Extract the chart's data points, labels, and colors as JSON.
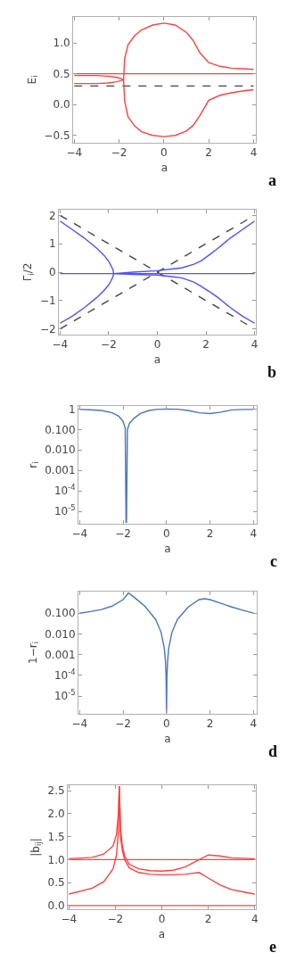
{
  "chart_data": [
    {
      "type": "line",
      "xlabel": "a",
      "ylabel": "E$_{i}$",
      "annotations": [
        "a"
      ],
      "xlim": [
        -4.05,
        4.1
      ],
      "xticks": [
        -4,
        -2,
        0,
        2,
        4
      ],
      "ylim": [
        -0.62,
        1.42
      ],
      "yticks": [
        {
          "value": -0.5,
          "label": "−0.5"
        },
        {
          "value": 0,
          "label": "0.0"
        },
        {
          "value": 0.5,
          "label": "0.5"
        },
        {
          "value": 1,
          "label": "1.0"
        }
      ],
      "series": [
        {
          "color": "#ff4040",
          "x": [
            -4,
            4
          ],
          "values": [
            0.5,
            0.5
          ]
        },
        {
          "color": "#444444",
          "line_style": "dashed",
          "x": [
            -4,
            4
          ],
          "values": [
            0.3,
            0.3
          ]
        },
        {
          "color": "#ff4040",
          "x": [
            -4,
            -3,
            -2.5,
            -2.1,
            -1.9,
            -1.8
          ],
          "values": [
            0.47,
            0.47,
            0.46,
            0.44,
            0.42,
            0.4
          ]
        },
        {
          "color": "#ff4040",
          "x": [
            -4,
            -3,
            -2.5,
            -2.1,
            -1.9,
            -1.8
          ],
          "values": [
            0.34,
            0.34,
            0.35,
            0.37,
            0.39,
            0.4
          ]
        },
        {
          "color": "#ff4040",
          "x": [
            4,
            3.5,
            3,
            2.5,
            2,
            1.6,
            1.3,
            1,
            0.5,
            0,
            -0.5,
            -1,
            -1.3,
            -1.6,
            -1.75,
            -1.8,
            -1.75,
            -1.6,
            -1.3,
            -1,
            -0.5,
            0,
            0.5,
            1,
            1.3,
            1.6,
            2,
            2.5,
            3,
            3.5,
            4
          ],
          "values": [
            0.57,
            0.58,
            0.59,
            0.62,
            0.68,
            0.84,
            1.04,
            1.17,
            1.29,
            1.32,
            1.29,
            1.21,
            1.12,
            0.97,
            0.75,
            0.4,
            0.05,
            -0.2,
            -0.35,
            -0.44,
            -0.5,
            -0.52,
            -0.5,
            -0.43,
            -0.34,
            -0.18,
            0.07,
            0.15,
            0.19,
            0.22,
            0.24
          ]
        }
      ]
    },
    {
      "type": "line",
      "xlabel": "a",
      "ylabel": "Γ$_{i}$/2",
      "annotations": [
        "b"
      ],
      "xlim": [
        -4.05,
        4.05
      ],
      "xticks": [
        -4,
        -2,
        0,
        2,
        4
      ],
      "ylim": [
        -2.2,
        2.2
      ],
      "yticks": [
        -2,
        -1,
        0,
        1,
        2
      ],
      "series": [
        {
          "color": "#444444",
          "line_style": "dashed",
          "x": [
            -4,
            4
          ],
          "values": [
            2,
            -2
          ]
        },
        {
          "color": "#444444",
          "line_style": "dashed",
          "x": [
            -4,
            4
          ],
          "values": [
            -2,
            2
          ]
        },
        {
          "color": "#5050ff",
          "x": [
            -4,
            4
          ],
          "values": [
            -0.05,
            -0.05
          ]
        },
        {
          "color": "#5050ff",
          "x": [
            -4,
            -3.5,
            -3,
            -2.5,
            -2.2,
            -2,
            -1.9,
            -1.82,
            -1.8,
            -1.82,
            -1.9,
            -2,
            -2.2,
            -2.5,
            -3,
            -3.5,
            -4
          ],
          "values": [
            1.8,
            1.5,
            1.2,
            0.85,
            0.6,
            0.38,
            0.22,
            0.08,
            -0.05,
            -0.15,
            -0.3,
            -0.45,
            -0.65,
            -0.9,
            -1.25,
            -1.55,
            -1.8
          ]
        },
        {
          "color": "#5050ff",
          "x": [
            -1.8,
            -1,
            0,
            0.5,
            1,
            1.5,
            1.8,
            2.2,
            2.5,
            3,
            3.5,
            4
          ],
          "values": [
            -0.05,
            0.0,
            0.05,
            0.1,
            0.15,
            0.28,
            0.4,
            0.65,
            0.85,
            1.2,
            1.5,
            1.8
          ]
        },
        {
          "color": "#5050ff",
          "x": [
            -1.8,
            -1,
            0,
            0.5,
            1,
            1.5,
            1.8,
            2.2,
            2.5,
            3,
            3.5,
            4
          ],
          "values": [
            -0.05,
            -0.08,
            -0.1,
            -0.15,
            -0.2,
            -0.35,
            -0.5,
            -0.72,
            -0.9,
            -1.25,
            -1.55,
            -1.8
          ]
        }
      ]
    },
    {
      "type": "line",
      "log": true,
      "xlabel": "a",
      "ylabel": "r$_{i}$",
      "annotations": [
        "c"
      ],
      "xlim": [
        -4.05,
        4.15
      ],
      "xticks": [
        -4,
        -2,
        0,
        2,
        4
      ],
      "ylim": [
        2.5e-06,
        1.4
      ],
      "yticks": [
        {
          "value": 1,
          "label": "1"
        },
        {
          "value": 0.1,
          "label": "0.100"
        },
        {
          "value": 0.01,
          "label": "0.010"
        },
        {
          "value": 0.001,
          "label": "0.001"
        },
        {
          "value": 0.0001,
          "label": "10$^{-4}$"
        },
        {
          "value": 1e-05,
          "label": "10$^{-5}$"
        }
      ],
      "series": [
        {
          "color": "#4a74bd",
          "x": [
            -4,
            -3.5,
            -3,
            -2.5,
            -2.2,
            -2,
            -1.9,
            -1.86,
            -1.84,
            -1.8,
            -1.7,
            -1.5,
            -1.2,
            -0.8,
            -0.5,
            0,
            0.5,
            1,
            1.5,
            2,
            2.5,
            3,
            3.5,
            4
          ],
          "values": [
            0.95,
            0.92,
            0.85,
            0.65,
            0.45,
            0.25,
            0.12,
            3e-06,
            3e-06,
            0.1,
            0.2,
            0.35,
            0.6,
            0.85,
            0.95,
            1,
            0.97,
            0.85,
            0.65,
            0.6,
            0.7,
            0.9,
            0.95,
            0.95
          ]
        }
      ]
    },
    {
      "type": "line",
      "log": true,
      "xlabel": "a",
      "ylabel": "1−r$_{i}$",
      "annotations": [
        "d"
      ],
      "xlim": [
        -4.05,
        4.15
      ],
      "xticks": [
        -4,
        -2,
        0,
        2,
        4
      ],
      "ylim": [
        1.4e-06,
        1.1
      ],
      "yticks": [
        {
          "value": 0.1,
          "label": "0.100"
        },
        {
          "value": 0.01,
          "label": "0.010"
        },
        {
          "value": 0.001,
          "label": "0.001"
        },
        {
          "value": 0.0001,
          "label": "10$^{-4}$"
        },
        {
          "value": 1e-05,
          "label": "10$^{-5}$"
        }
      ],
      "series": [
        {
          "color": "#4a74bd",
          "x": [
            -4,
            -3.5,
            -3,
            -2.5,
            -2,
            -1.75,
            -1.5,
            -1,
            -0.5,
            -0.25,
            -0.1,
            -0.05,
            -0.02,
            0,
            0.02,
            0.05,
            0.1,
            0.25,
            0.5,
            1,
            1.5,
            1.75,
            2,
            2.5,
            3,
            3.5,
            4
          ],
          "values": [
            0.1,
            0.12,
            0.15,
            0.22,
            0.45,
            0.95,
            0.6,
            0.22,
            0.05,
            0.012,
            0.002,
            0.0005,
            0.0001,
            1.5e-06,
            0.0001,
            0.0005,
            0.002,
            0.012,
            0.05,
            0.2,
            0.45,
            0.5,
            0.45,
            0.3,
            0.2,
            0.14,
            0.1
          ]
        }
      ]
    },
    {
      "type": "line",
      "xlabel": "a",
      "ylabel": "|b$_{ij}$|",
      "annotations": [
        "e"
      ],
      "xlim": [
        -4.05,
        4.05
      ],
      "xticks": [
        -4,
        -2,
        0,
        2,
        4
      ],
      "ylim": [
        -0.08,
        2.62
      ],
      "yticks": [
        {
          "value": 0,
          "label": "0.0"
        },
        {
          "value": 0.5,
          "label": "0.5"
        },
        {
          "value": 1,
          "label": "1.0"
        },
        {
          "value": 1.5,
          "label": "1.5"
        },
        {
          "value": 2,
          "label": "2.0"
        },
        {
          "value": 2.5,
          "label": "2.5"
        }
      ],
      "series": [
        {
          "color": "#ff4040",
          "x": [
            -4,
            4
          ],
          "values": [
            1,
            1
          ]
        },
        {
          "color": "#ff4040",
          "x": [
            -4,
            4
          ],
          "values": [
            0,
            0
          ]
        },
        {
          "color": "#ff4040",
          "x": [
            -4,
            -3,
            -2.5,
            -2.1,
            -1.95,
            -1.87,
            -1.83,
            -1.78,
            -1.7,
            -1.6,
            -1.4,
            -1,
            -0.5,
            0,
            0.5,
            1,
            1.5,
            2,
            2.5,
            3,
            4
          ],
          "values": [
            1.02,
            1.05,
            1.12,
            1.3,
            1.55,
            2.0,
            2.6,
            1.7,
            1.3,
            1.08,
            0.9,
            0.8,
            0.76,
            0.75,
            0.77,
            0.84,
            0.97,
            1.1,
            1.08,
            1.04,
            1.02
          ]
        },
        {
          "color": "#ff4040",
          "x": [
            -4,
            -3,
            -2.5,
            -2.1,
            -1.95,
            -1.87,
            -1.83,
            -1.78,
            -1.7,
            -1.6,
            -1.4,
            -1,
            -0.5,
            0,
            0.5,
            1,
            1.6,
            2,
            2.5,
            3,
            3.5,
            4
          ],
          "values": [
            0.25,
            0.38,
            0.52,
            0.8,
            1.1,
            1.6,
            2.6,
            1.5,
            1.2,
            1.0,
            0.82,
            0.72,
            0.68,
            0.67,
            0.67,
            0.68,
            0.72,
            0.6,
            0.45,
            0.35,
            0.3,
            0.25
          ]
        }
      ]
    }
  ]
}
